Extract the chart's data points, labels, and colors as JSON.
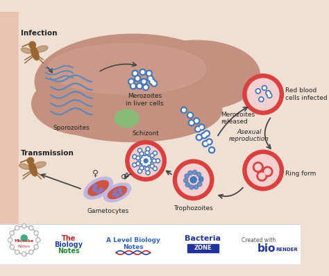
{
  "background_color": "#f0e0d4",
  "left_bar_color": "#e8c4b0",
  "bottom_bar_color": "#ffffff",
  "colors": {
    "liver_brown": "#c49080",
    "liver_highlight": "#d4a898",
    "liver_green": "#88bb77",
    "red_cell_outer": "#d94040",
    "red_cell_inner": "#f0a0a0",
    "cell_light": "#f5d0d0",
    "blue_dot": "#4477bb",
    "blue_dot_dark": "#2255aa",
    "arrow_dark": "#444444",
    "text_dark": "#222222",
    "gam_purple_outer": "#c0b8e0",
    "gam_red_inner": "#cc5544",
    "gam_dot": "#8877bb",
    "sporozoite_blue": "#5588bb"
  },
  "labels": {
    "infection": "Infection",
    "transmission": "Transmission",
    "sporozoites": "Sporozoites",
    "merozoites_liver": "Merozoites\nin liver cells",
    "merozoites_released": "Merozoites\nreleased",
    "red_blood": "Red blood\ncells infected",
    "schizont": "Schizont",
    "asexual": "Asexual\nreproduction",
    "ring_form": "Ring form",
    "trophozoites": "Trophozoites",
    "gametocytes": "Gametocytes"
  }
}
